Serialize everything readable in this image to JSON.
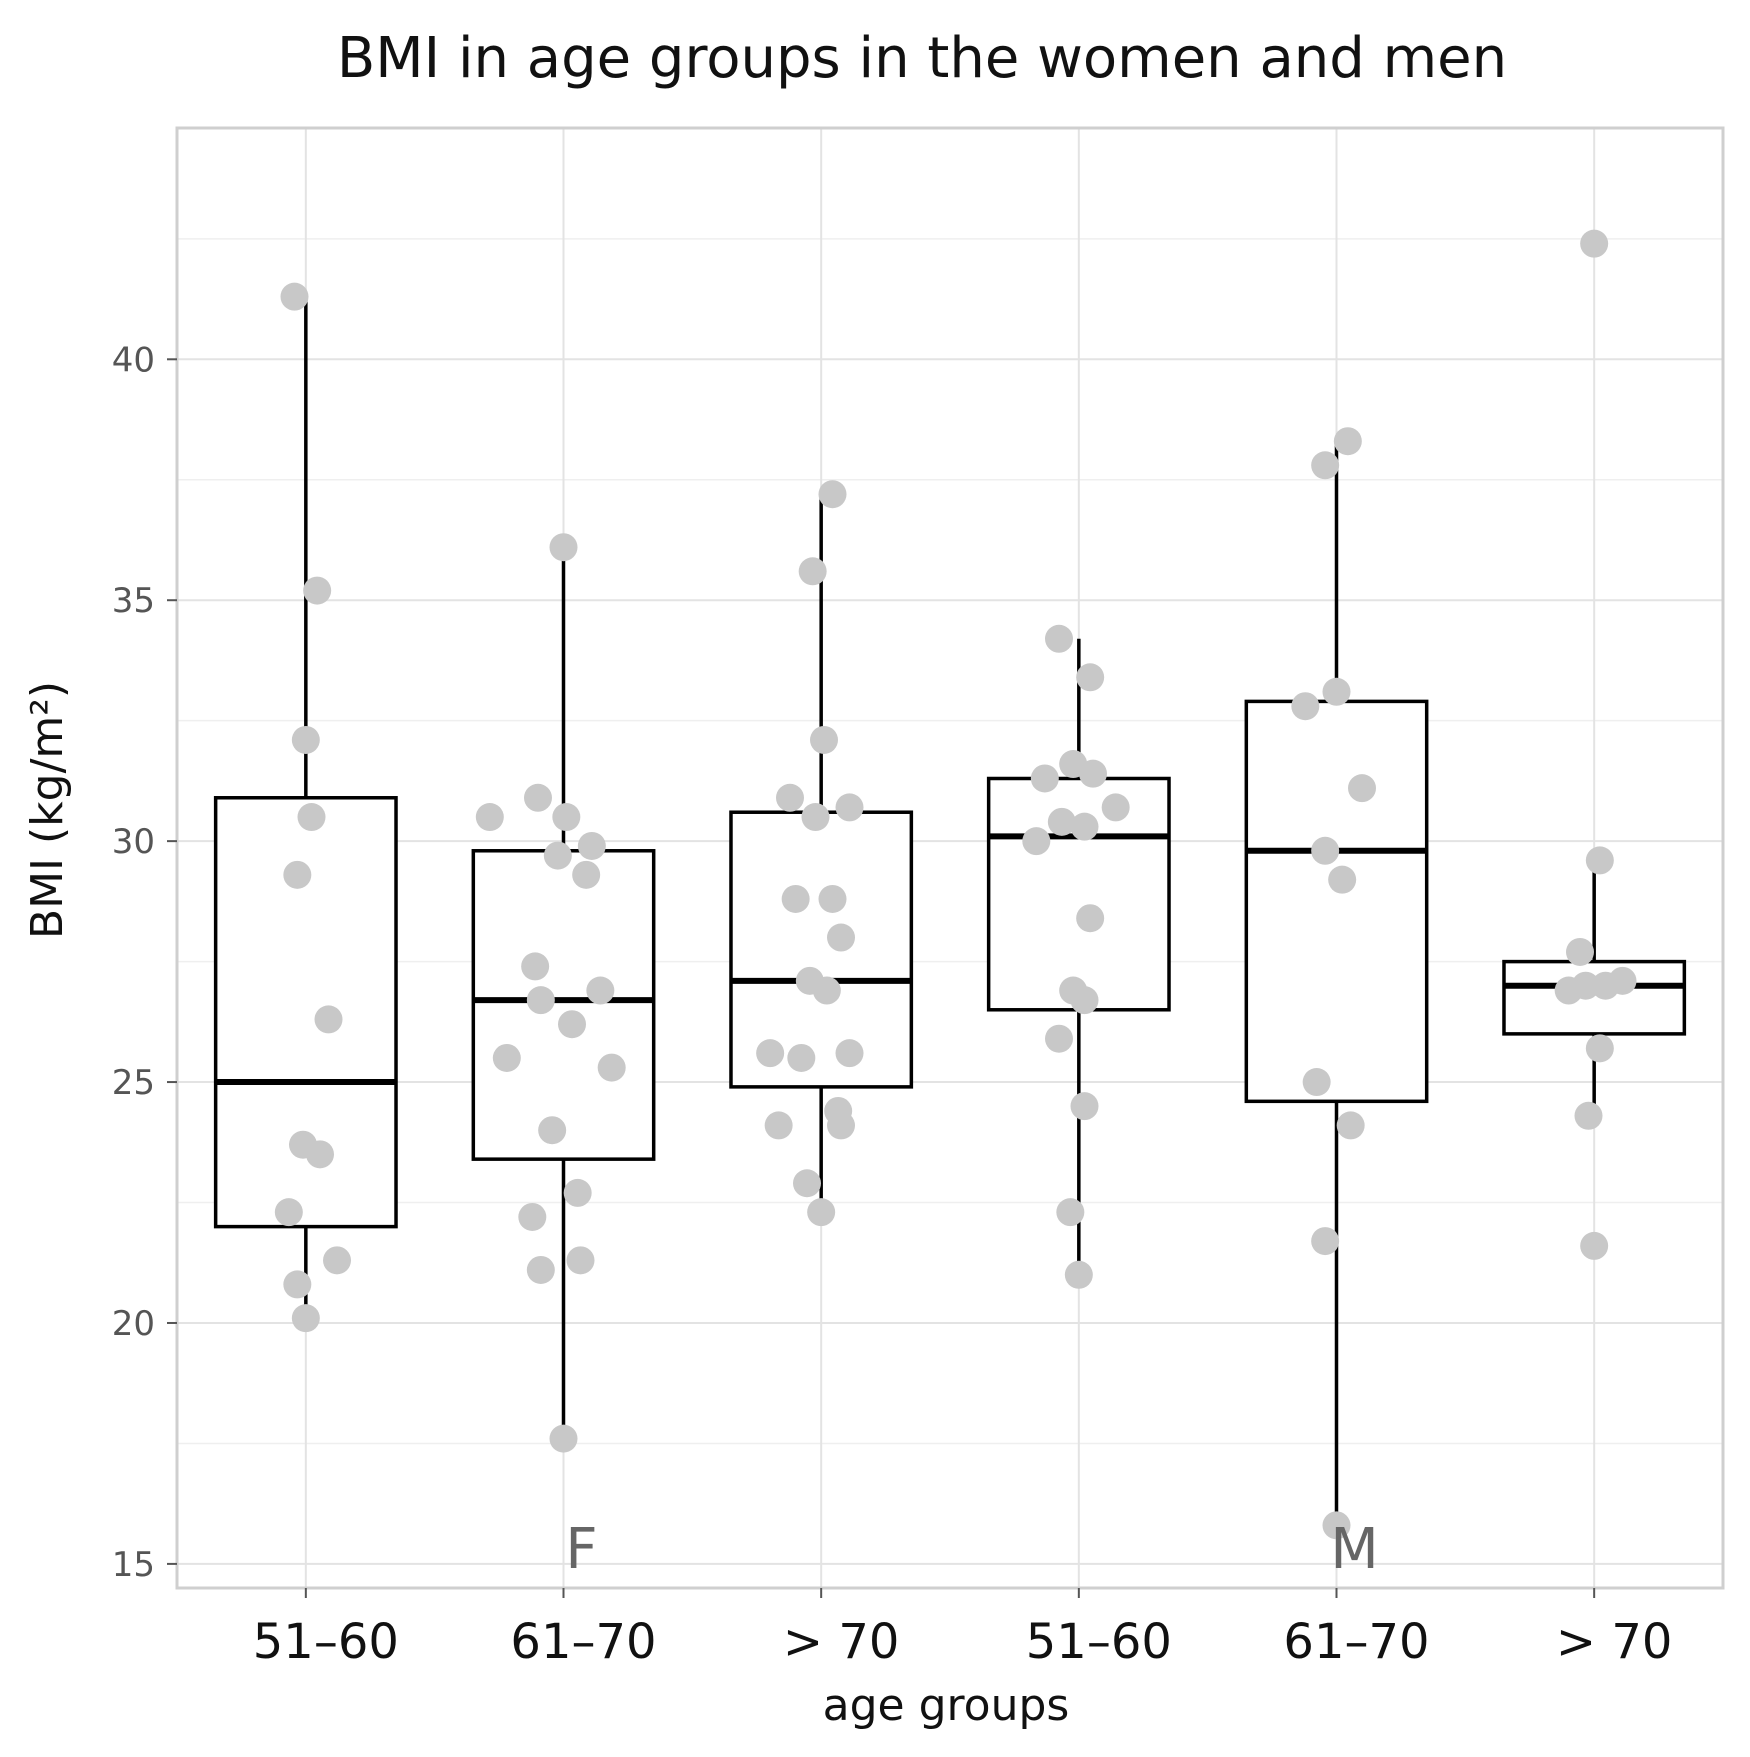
{
  "chart_data": {
    "type": "boxplot",
    "title": "BMI in age groups in the women and men",
    "xlabel": "age groups",
    "ylabel": "BMI (kg/m²)",
    "ylim": [
      14.5,
      44.8
    ],
    "y_ticks": [
      15,
      20,
      25,
      30,
      35,
      40
    ],
    "grid": true,
    "groups": [
      {
        "sex": "F",
        "label": "51–60",
        "whisker_low": 20.1,
        "q1": 22.0,
        "median": 25.0,
        "q3": 30.9,
        "whisker_high": 41.3,
        "points": [
          [
            -0.2,
            41.3
          ],
          [
            0.2,
            35.2
          ],
          [
            0.0,
            32.1
          ],
          [
            0.1,
            30.5
          ],
          [
            -0.15,
            29.3
          ],
          [
            0.4,
            26.3
          ],
          [
            -0.05,
            23.7
          ],
          [
            0.25,
            23.5
          ],
          [
            -0.3,
            22.3
          ],
          [
            -0.15,
            20.8
          ],
          [
            0.0,
            20.1
          ],
          [
            0.55,
            21.3
          ]
        ]
      },
      {
        "sex": "F",
        "label": "61–70",
        "whisker_low": 17.6,
        "q1": 23.4,
        "median": 26.7,
        "q3": 29.8,
        "whisker_high": 36.1,
        "points": [
          [
            0.0,
            36.1
          ],
          [
            -0.45,
            30.9
          ],
          [
            0.05,
            30.5
          ],
          [
            -1.3,
            30.5
          ],
          [
            -0.1,
            29.7
          ],
          [
            0.5,
            29.9
          ],
          [
            0.4,
            29.3
          ],
          [
            0.65,
            26.9
          ],
          [
            -0.5,
            27.4
          ],
          [
            -0.4,
            26.7
          ],
          [
            0.15,
            26.2
          ],
          [
            -1.0,
            25.5
          ],
          [
            0.85,
            25.3
          ],
          [
            -0.2,
            24.0
          ],
          [
            0.25,
            22.7
          ],
          [
            -0.55,
            22.2
          ],
          [
            -0.4,
            21.1
          ],
          [
            0.3,
            21.3
          ],
          [
            0.0,
            17.6
          ]
        ]
      },
      {
        "sex": "F",
        "label": "> 70",
        "whisker_low": 22.3,
        "q1": 24.9,
        "median": 27.1,
        "q3": 30.6,
        "whisker_high": 37.2,
        "points": [
          [
            0.2,
            37.2
          ],
          [
            -0.15,
            35.6
          ],
          [
            0.05,
            32.1
          ],
          [
            -0.55,
            30.9
          ],
          [
            -0.1,
            30.5
          ],
          [
            0.5,
            30.7
          ],
          [
            -0.45,
            28.8
          ],
          [
            0.2,
            28.8
          ],
          [
            0.35,
            28.0
          ],
          [
            -0.2,
            27.1
          ],
          [
            0.1,
            26.9
          ],
          [
            -0.9,
            25.6
          ],
          [
            -0.35,
            25.5
          ],
          [
            0.5,
            25.6
          ],
          [
            -0.75,
            24.1
          ],
          [
            0.3,
            24.4
          ],
          [
            0.35,
            24.1
          ],
          [
            -0.25,
            22.9
          ],
          [
            0.0,
            22.3
          ]
        ]
      },
      {
        "sex": "M",
        "label": "51–60",
        "whisker_low": 21.0,
        "q1": 26.5,
        "median": 30.1,
        "q3": 31.3,
        "whisker_high": 34.2,
        "points": [
          [
            -0.35,
            34.2
          ],
          [
            0.2,
            33.4
          ],
          [
            -0.6,
            31.3
          ],
          [
            -0.1,
            31.6
          ],
          [
            0.25,
            31.4
          ],
          [
            -0.3,
            30.4
          ],
          [
            0.1,
            30.3
          ],
          [
            0.65,
            30.7
          ],
          [
            -0.75,
            30.0
          ],
          [
            0.2,
            28.4
          ],
          [
            -0.1,
            26.9
          ],
          [
            0.1,
            26.7
          ],
          [
            -0.35,
            25.9
          ],
          [
            0.1,
            24.5
          ],
          [
            -0.15,
            22.3
          ],
          [
            0.0,
            21.0
          ]
        ]
      },
      {
        "sex": "M",
        "label": "61–70",
        "whisker_low": 15.8,
        "q1": 24.6,
        "median": 29.8,
        "q3": 32.9,
        "whisker_high": 38.3,
        "points": [
          [
            0.2,
            38.3
          ],
          [
            -0.2,
            37.8
          ],
          [
            0.0,
            33.1
          ],
          [
            -0.55,
            32.8
          ],
          [
            0.45,
            31.1
          ],
          [
            -0.2,
            29.8
          ],
          [
            0.1,
            29.2
          ],
          [
            -0.35,
            25.0
          ],
          [
            0.25,
            24.1
          ],
          [
            -0.2,
            21.7
          ],
          [
            0.0,
            15.8
          ]
        ]
      },
      {
        "sex": "M",
        "label": "> 70",
        "whisker_low": 24.2,
        "q1": 26.0,
        "median": 27.0,
        "q3": 27.5,
        "whisker_high": 29.6,
        "points": [
          [
            0.0,
            42.4
          ],
          [
            0.1,
            29.6
          ],
          [
            -0.25,
            27.7
          ],
          [
            -0.45,
            26.9
          ],
          [
            -0.15,
            27.0
          ],
          [
            0.2,
            27.0
          ],
          [
            0.5,
            27.1
          ],
          [
            0.1,
            25.7
          ],
          [
            -0.1,
            24.3
          ],
          [
            0.0,
            21.6
          ]
        ]
      }
    ],
    "facet_labels": [
      {
        "text": "F",
        "group": 1
      },
      {
        "text": "M",
        "group": 4
      }
    ]
  }
}
